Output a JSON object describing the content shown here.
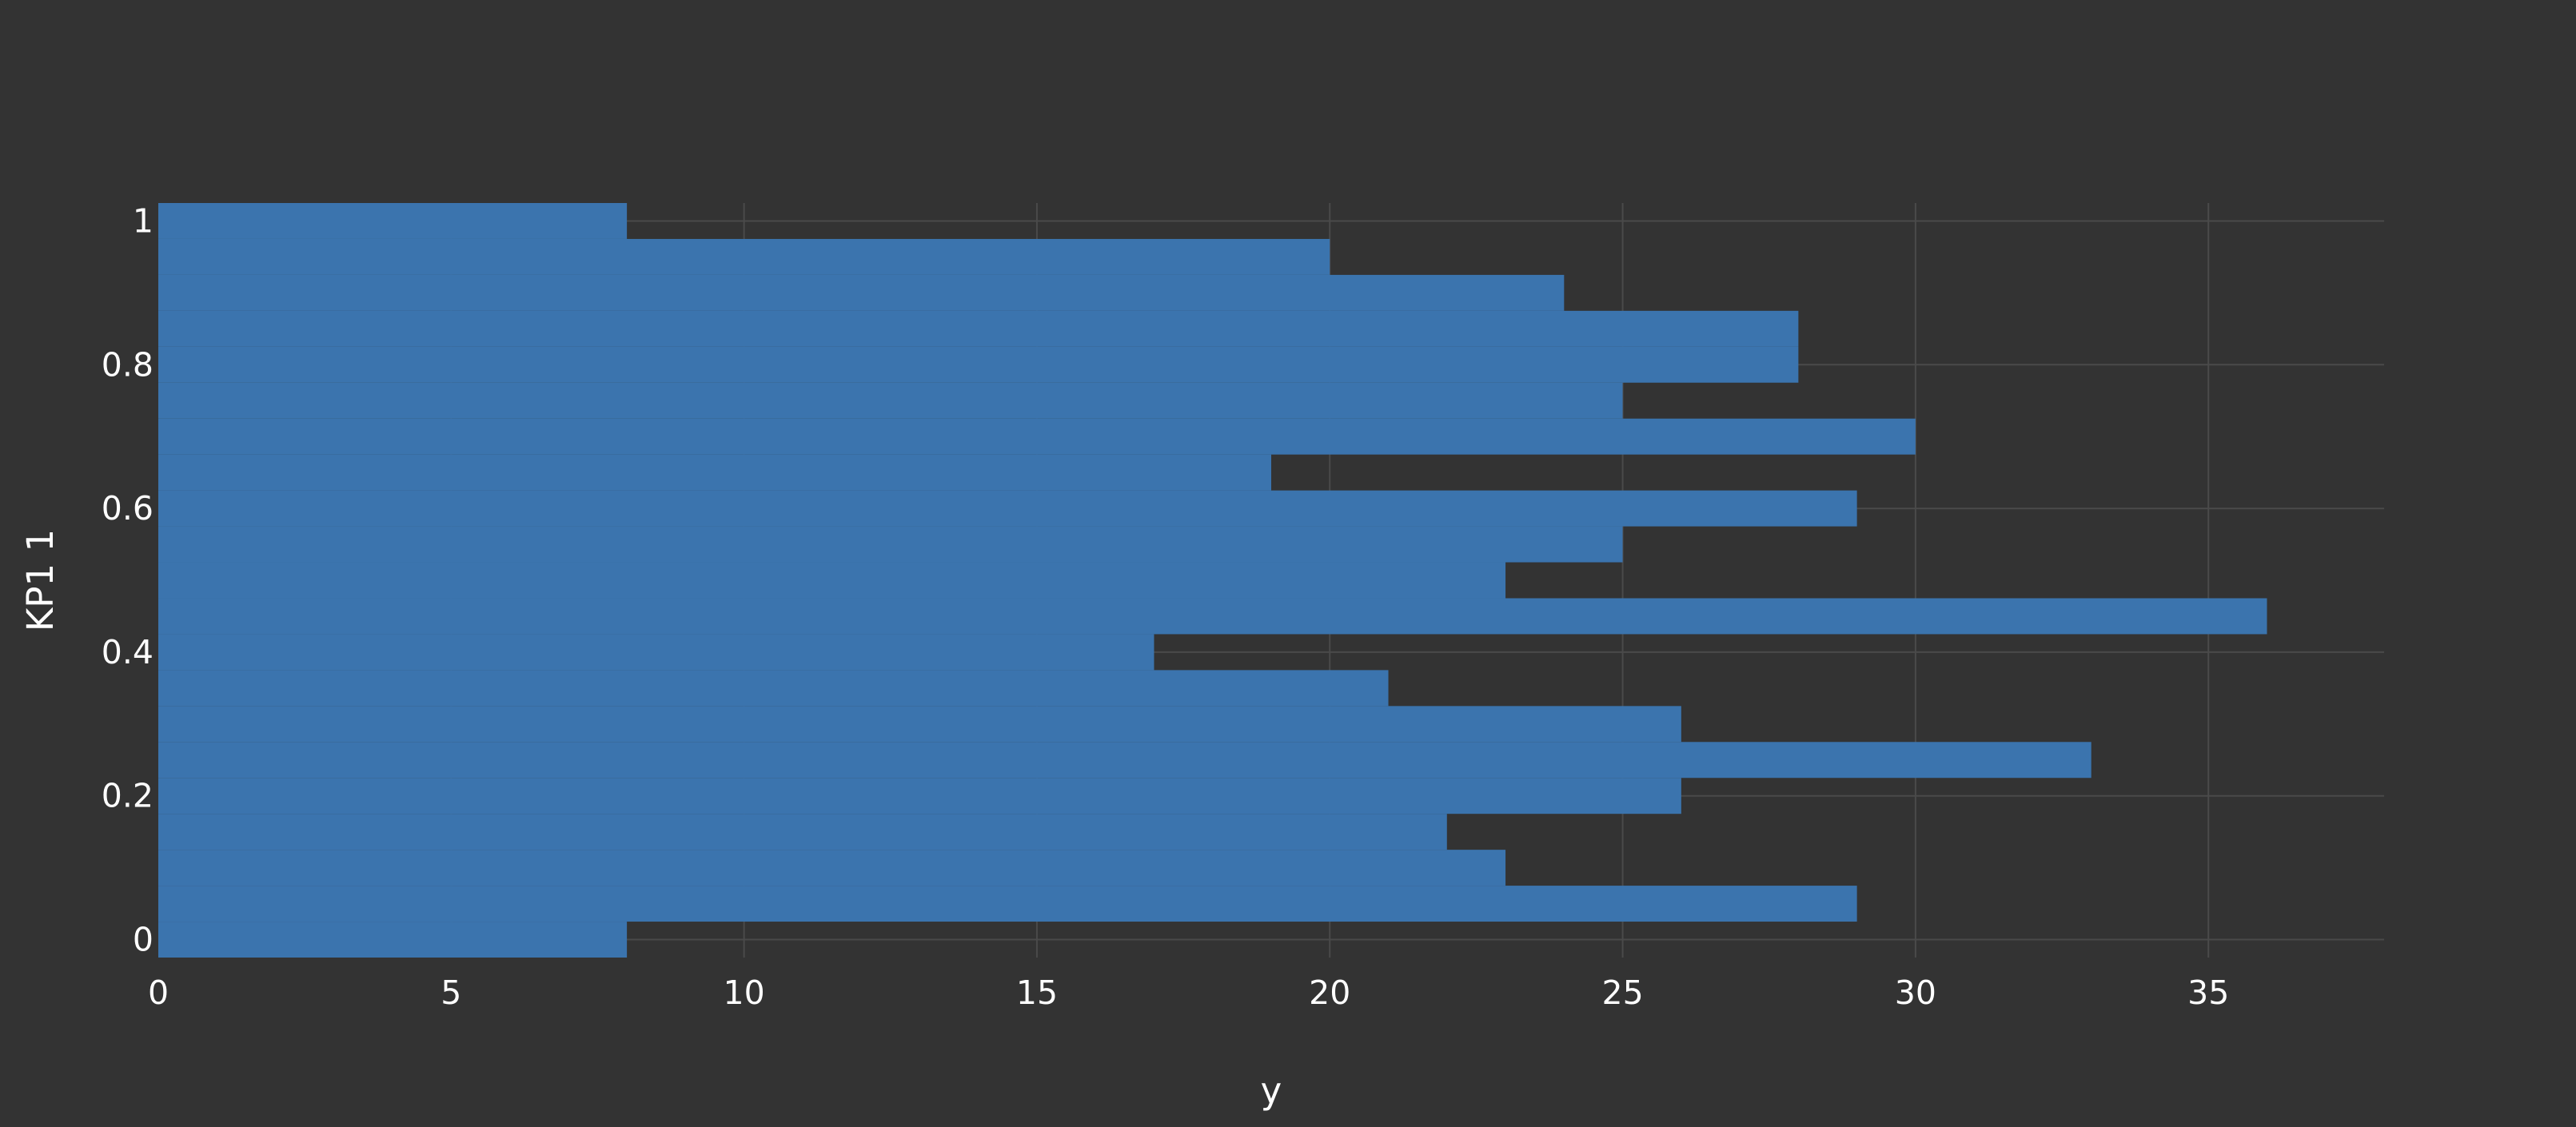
{
  "chart_data": {
    "type": "bar",
    "orientation": "horizontal",
    "title": "",
    "xlabel": "y",
    "ylabel": "KP1 1",
    "xlim": [
      0,
      38
    ],
    "ylim": [
      -0.025,
      1.025
    ],
    "x_ticks": [
      "0",
      "5",
      "10",
      "15",
      "20",
      "25",
      "30",
      "35"
    ],
    "y_ticks": [
      "0",
      "0.2",
      "0.4",
      "0.6",
      "0.8",
      "1"
    ],
    "grid": true,
    "legend": "none",
    "series": [
      {
        "bins": [
          {
            "y": 0.0,
            "value": 8
          },
          {
            "y": 0.05,
            "value": 29
          },
          {
            "y": 0.1,
            "value": 23
          },
          {
            "y": 0.15,
            "value": 22
          },
          {
            "y": 0.2,
            "value": 26
          },
          {
            "y": 0.25,
            "value": 33
          },
          {
            "y": 0.3,
            "value": 26
          },
          {
            "y": 0.35,
            "value": 21
          },
          {
            "y": 0.4,
            "value": 17
          },
          {
            "y": 0.45,
            "value": 36
          },
          {
            "y": 0.5,
            "value": 23
          },
          {
            "y": 0.55,
            "value": 25
          },
          {
            "y": 0.6,
            "value": 29
          },
          {
            "y": 0.65,
            "value": 19
          },
          {
            "y": 0.7,
            "value": 30
          },
          {
            "y": 0.75,
            "value": 25
          },
          {
            "y": 0.8,
            "value": 28
          },
          {
            "y": 0.85,
            "value": 28
          },
          {
            "y": 0.9,
            "value": 24
          },
          {
            "y": 0.95,
            "value": 20
          },
          {
            "y": 1.0,
            "value": 8
          }
        ],
        "bin_width": 0.05
      }
    ],
    "colors": {
      "background": "#333333",
      "bar": "#3b74ae",
      "grid": "#4a4a4a",
      "text": "#ffffff"
    }
  }
}
